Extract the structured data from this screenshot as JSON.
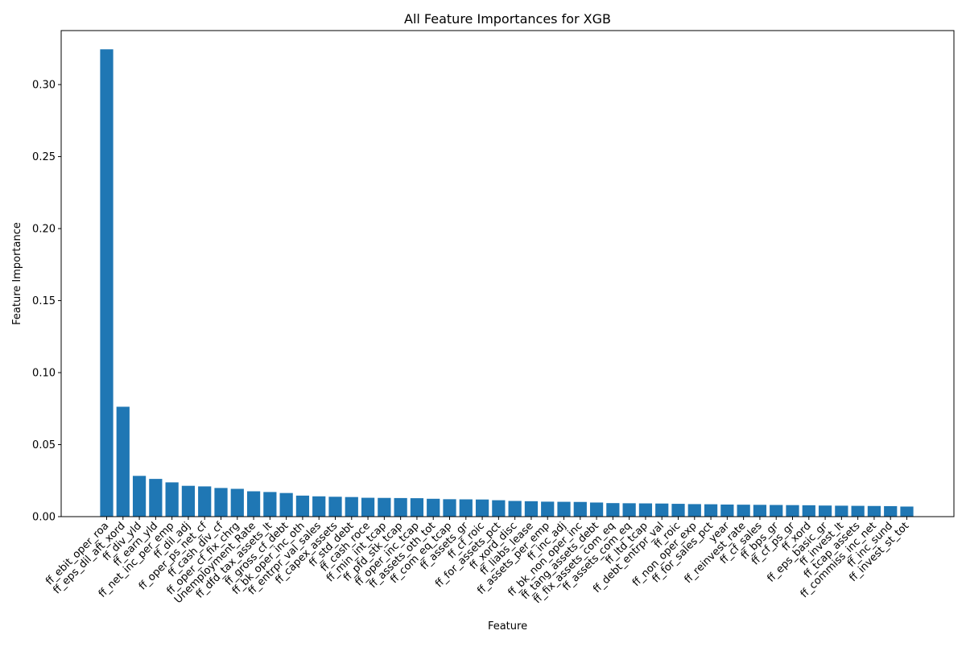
{
  "chart_data": {
    "type": "bar",
    "title": "All Feature Importances for XGB",
    "xlabel": "Feature",
    "ylabel": "Feature Importance",
    "ylim": [
      0,
      0.3375
    ],
    "yticks": [
      0.0,
      0.05,
      0.1,
      0.15,
      0.2,
      0.25,
      0.3
    ],
    "ytick_labels": [
      "0.00",
      "0.05",
      "0.10",
      "0.15",
      "0.20",
      "0.25",
      "0.30"
    ],
    "grid": false,
    "bar_color": "#1f77b4",
    "categories": [
      "ff_ebit_oper_roa",
      "ff_eps_dil_aft_xord",
      "ff_div_yld",
      "ff_earn_yld",
      "ff_net_inc_per_emp",
      "ff_dil_adj",
      "ff_oper_ps_net_cf",
      "ff_cash_div_cf",
      "ff_oper_cf_fix_chrg",
      "Unemployment_Rate",
      "ff_dfd_tax_assets_lt",
      "ff_gross_cf_debt",
      "ff_bk_oper_inc_oth",
      "ff_entrpr_val_sales",
      "ff_capex_assets",
      "ff_std_debt",
      "ff_cash_roce",
      "ff_min_int_tcap",
      "ff_pfd_stk_tcap",
      "ff_oper_inc_tcap",
      "ff_assets_oth_tot",
      "ff_com_eq_tcap",
      "ff_assets_gr",
      "ff_cf_roic",
      "ff_for_assets_pct",
      "ff_xord_disc",
      "ff_liabs_lease",
      "ff_assets_per_emp",
      "ff_inc_adj",
      "ff_bk_non_oper_inc",
      "ff_tang_assets_debt",
      "ff_fix_assets_com_eq",
      "ff_assets_com_eq",
      "ff_ltd_tcap",
      "ff_debt_entrpr_val",
      "ff_roic",
      "ff_non_oper_exp",
      "ff_for_sales_pct",
      "year",
      "ff_reinvest_rate",
      "ff_cf_sales",
      "ff_bps_gr",
      "ff_cf_ps_gr",
      "ff_xord",
      "ff_eps_basic_gr",
      "ff_invest_lt",
      "ff_tcap_assets",
      "ff_commiss_inc_net",
      "ff_inc_sund",
      "ff_invest_st_tot"
    ],
    "values": [
      0.3245,
      0.0763,
      0.0283,
      0.0262,
      0.0238,
      0.0214,
      0.021,
      0.0199,
      0.0193,
      0.0176,
      0.0171,
      0.0164,
      0.0146,
      0.0141,
      0.0138,
      0.0136,
      0.0131,
      0.013,
      0.0129,
      0.0128,
      0.0124,
      0.0121,
      0.012,
      0.0119,
      0.0114,
      0.0109,
      0.0107,
      0.0104,
      0.0103,
      0.0102,
      0.0098,
      0.0094,
      0.0093,
      0.0092,
      0.0091,
      0.0089,
      0.0087,
      0.0086,
      0.0084,
      0.0083,
      0.0082,
      0.0081,
      0.008,
      0.0079,
      0.0077,
      0.0076,
      0.0075,
      0.0074,
      0.0073,
      0.007
    ]
  }
}
